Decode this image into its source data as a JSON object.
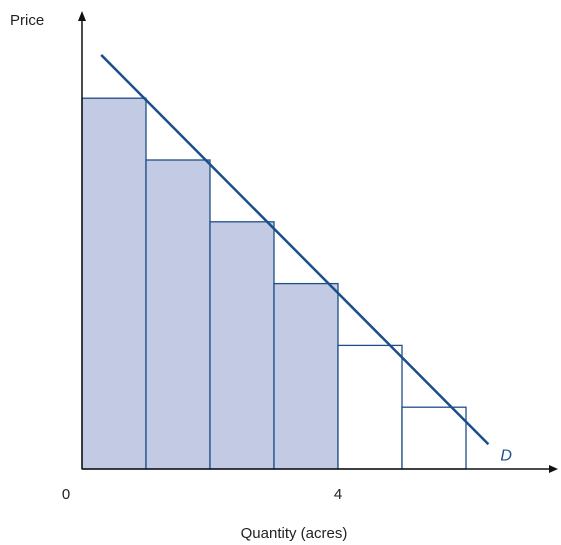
{
  "chart_data": {
    "type": "bar",
    "title": "",
    "xlabel": "Quantity (acres)",
    "ylabel": "Price",
    "origin_label": "0",
    "x_ticks": [
      {
        "value": 4,
        "label": "4"
      }
    ],
    "xlim": [
      0,
      7.5
    ],
    "ylim": [
      0,
      7.8
    ],
    "bars": [
      {
        "x_start": 0,
        "x_end": 1,
        "value": 6,
        "shaded": true
      },
      {
        "x_start": 1,
        "x_end": 2,
        "value": 5,
        "shaded": true
      },
      {
        "x_start": 2,
        "x_end": 3,
        "value": 4,
        "shaded": true
      },
      {
        "x_start": 3,
        "x_end": 4,
        "value": 3,
        "shaded": true
      },
      {
        "x_start": 4,
        "x_end": 5,
        "value": 2,
        "shaded": false
      },
      {
        "x_start": 5,
        "x_end": 6,
        "value": 1,
        "shaded": false
      }
    ],
    "demand_line": {
      "label": "D",
      "points": [
        [
          0.3,
          6.7
        ],
        [
          6.35,
          0.4
        ]
      ]
    },
    "grid": false,
    "colors": {
      "shade": "#c2cbe3",
      "bar_stroke": "#1f4e89",
      "line": "#1c4f8a",
      "axis": "#111111",
      "label": "#1f4e89"
    }
  }
}
